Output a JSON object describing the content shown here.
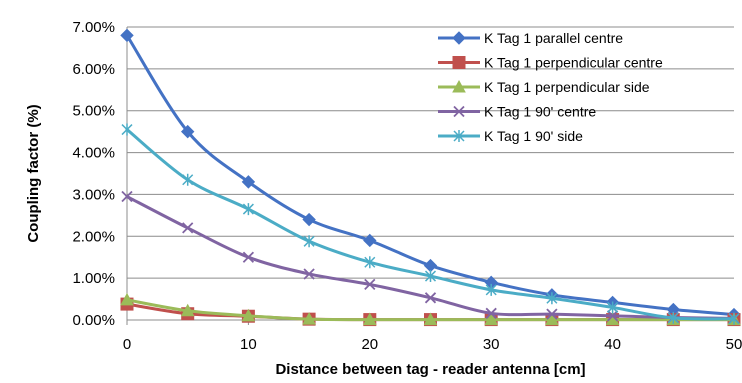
{
  "chart_data": {
    "type": "line",
    "title": "",
    "xlabel": "Distance between tag - reader antenna [cm]",
    "ylabel": "Coupling factor (%)",
    "xlim": [
      0,
      50
    ],
    "ylim": [
      0,
      0.07
    ],
    "x_ticks": [
      0,
      10,
      20,
      30,
      40,
      50
    ],
    "y_ticks": [
      0,
      0.01,
      0.02,
      0.03,
      0.04,
      0.05,
      0.06,
      0.07
    ],
    "x_tick_labels": [
      "0",
      "10",
      "20",
      "30",
      "40",
      "50"
    ],
    "y_tick_labels": [
      "0.00%",
      "1.00%",
      "2.00%",
      "3.00%",
      "4.00%",
      "5.00%",
      "6.00%",
      "7.00%"
    ],
    "grid": "horizontal",
    "legend_position": "top-right",
    "x": [
      0,
      5,
      10,
      15,
      20,
      25,
      30,
      35,
      40,
      45,
      50
    ],
    "series": [
      {
        "name": "K Tag 1 parallel centre",
        "color": "#4472C4",
        "marker": "diamond",
        "values": [
          0.068,
          0.045,
          0.033,
          0.024,
          0.019,
          0.013,
          0.009,
          0.006,
          0.0042,
          0.0025,
          0.0013
        ]
      },
      {
        "name": "K Tag 1 perpendicular centre",
        "color": "#C0504D",
        "marker": "square",
        "values": [
          0.0038,
          0.0015,
          0.0009,
          0.0002,
          0.0001,
          0.0001,
          0.0001,
          0.0001,
          0.0001,
          0.0001,
          0.0001
        ]
      },
      {
        "name": "K Tag 1 perpendicular side",
        "color": "#9BBB59",
        "marker": "triangle",
        "values": [
          0.0048,
          0.0022,
          0.001,
          0.0002,
          0.0001,
          0.0001,
          0.0001,
          0.0001,
          0.0001,
          0.0001,
          0.0001
        ]
      },
      {
        "name": "K Tag 1 90' centre",
        "color": "#8064A2",
        "marker": "x",
        "values": [
          0.0295,
          0.022,
          0.015,
          0.011,
          0.0085,
          0.0053,
          0.0016,
          0.0014,
          0.001,
          0.0006,
          0.0004
        ]
      },
      {
        "name": "K Tag 1 90' side",
        "color": "#4BACC6",
        "marker": "star",
        "values": [
          0.0455,
          0.0335,
          0.0265,
          0.0188,
          0.0138,
          0.0105,
          0.0072,
          0.0052,
          0.003,
          0.0005,
          0.0003
        ]
      }
    ]
  }
}
